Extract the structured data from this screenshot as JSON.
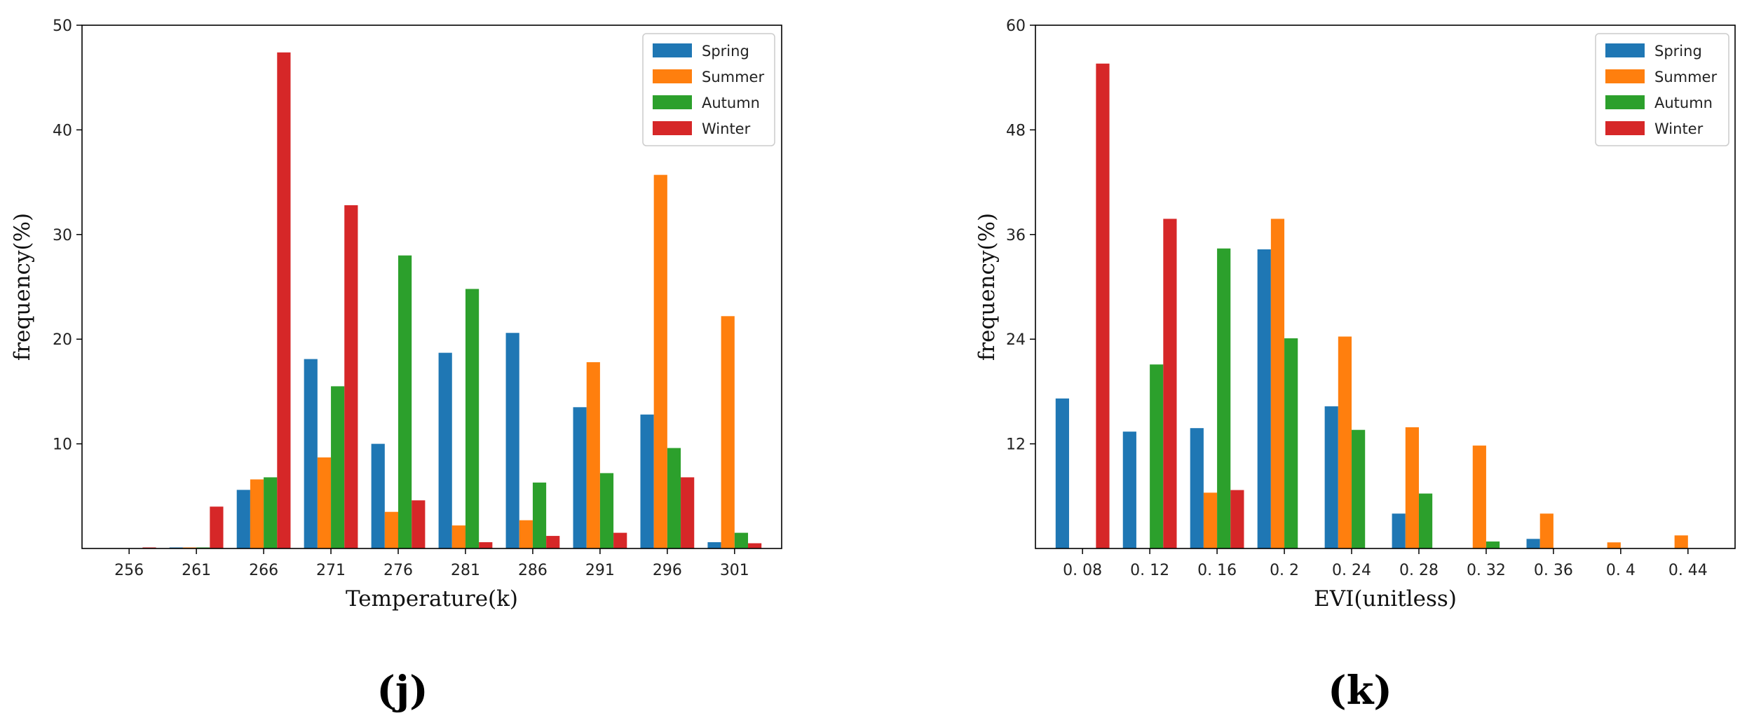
{
  "chart_data": [
    {
      "type": "bar",
      "panel_label": "(j)",
      "title": "",
      "xlabel": "Temperature(k)",
      "ylabel": "frequency(%)",
      "ylim": [
        0,
        50
      ],
      "yticks": [
        "10",
        "20",
        "30",
        "40",
        "50"
      ],
      "categories": [
        "256",
        "261",
        "266",
        "271",
        "276",
        "281",
        "286",
        "291",
        "296",
        "301"
      ],
      "legend_position": "top-right",
      "series": [
        {
          "name": "Spring",
          "color": "#1f77b4",
          "values": [
            0,
            0.1,
            5.6,
            18.1,
            10.0,
            18.7,
            20.6,
            13.5,
            12.8,
            0.6
          ]
        },
        {
          "name": "Summer",
          "color": "#ff7f0e",
          "values": [
            0,
            0.1,
            6.6,
            8.7,
            3.5,
            2.2,
            2.7,
            17.8,
            35.7,
            22.2
          ]
        },
        {
          "name": "Autumn",
          "color": "#2ca02c",
          "values": [
            0,
            0.1,
            6.8,
            15.5,
            28.0,
            24.8,
            6.3,
            7.2,
            9.6,
            1.5
          ]
        },
        {
          "name": "Winter",
          "color": "#d62728",
          "values": [
            0.1,
            4.0,
            47.4,
            32.8,
            4.6,
            0.6,
            1.2,
            1.5,
            6.8,
            0.5
          ]
        }
      ]
    },
    {
      "type": "bar",
      "panel_label": "(k)",
      "title": "",
      "xlabel": "EVI(unitless)",
      "ylabel": "frequency(%)",
      "ylim": [
        0,
        60
      ],
      "yticks": [
        "12",
        "24",
        "36",
        "48",
        "60"
      ],
      "categories": [
        "0. 08",
        "0. 12",
        "0. 16",
        "0. 2",
        "0. 24",
        "0. 28",
        "0. 32",
        "0. 36",
        "0. 4",
        "0. 44"
      ],
      "legend_position": "top-right",
      "series": [
        {
          "name": "Spring",
          "color": "#1f77b4",
          "values": [
            17.2,
            13.4,
            13.8,
            34.3,
            16.3,
            4.0,
            0,
            1.1,
            0,
            0
          ]
        },
        {
          "name": "Summer",
          "color": "#ff7f0e",
          "values": [
            0,
            0,
            6.4,
            37.8,
            24.3,
            13.9,
            11.8,
            4.0,
            0.7,
            1.5
          ]
        },
        {
          "name": "Autumn",
          "color": "#2ca02c",
          "values": [
            0,
            21.1,
            34.4,
            24.1,
            13.6,
            6.3,
            0.8,
            0,
            0,
            0
          ]
        },
        {
          "name": "Winter",
          "color": "#d62728",
          "values": [
            55.6,
            37.8,
            6.7,
            0,
            0,
            0,
            0,
            0,
            0,
            0
          ]
        }
      ]
    }
  ]
}
